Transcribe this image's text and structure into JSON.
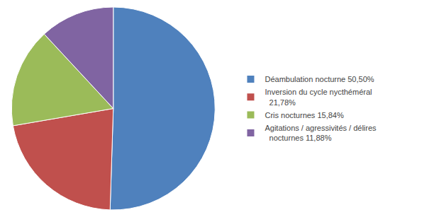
{
  "chart_data": {
    "type": "pie",
    "categories": [
      "Déambulation nocturne 50,50%",
      "Inversion du cycle nycthéméral\n  21,78%",
      "Cris nocturnes 15,84%",
      "Agitations / agressivités / délires\n  nocturnes 11,88%"
    ],
    "values": [
      50.5,
      21.78,
      15.84,
      11.88
    ],
    "colors": [
      "#4F81BD",
      "#C0504D",
      "#9BBB59",
      "#8064A2"
    ],
    "legend": "right"
  }
}
